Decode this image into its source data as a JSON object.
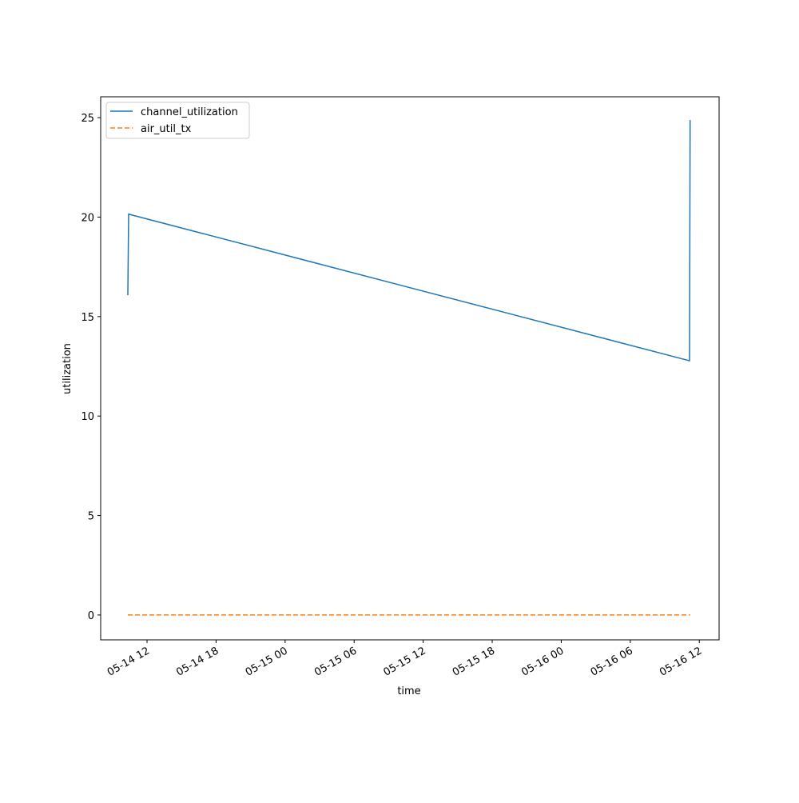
{
  "chart_data": {
    "type": "line",
    "x_label": "time",
    "y_label": "utilization",
    "x": [
      10.33,
      10.4,
      59.15,
      59.2
    ],
    "series": [
      {
        "name": "channel_utilization",
        "color": "#1f77b4",
        "dash": "solid",
        "values": [
          16.08,
          20.15,
          12.78,
          24.88
        ]
      },
      {
        "name": "air_util_tx",
        "color": "#ff7f0e",
        "dash": "dashed",
        "values": [
          0,
          0,
          0,
          0
        ]
      }
    ],
    "xlim": [
      7.97,
      61.72
    ],
    "xticks": [
      {
        "value": 12,
        "label": "05-14 12"
      },
      {
        "value": 18,
        "label": "05-14 18"
      },
      {
        "value": 24,
        "label": "05-15 00"
      },
      {
        "value": 30,
        "label": "05-15 06"
      },
      {
        "value": 36,
        "label": "05-15 12"
      },
      {
        "value": 42,
        "label": "05-15 18"
      },
      {
        "value": 48,
        "label": "05-16 00"
      },
      {
        "value": 54,
        "label": "05-16 06"
      },
      {
        "value": 60,
        "label": "05-16 12"
      }
    ],
    "ylim": [
      -1.25,
      26.05
    ],
    "yticks": [
      0,
      5,
      10,
      15,
      20,
      25
    ],
    "grid": false,
    "legend": "upper left"
  }
}
